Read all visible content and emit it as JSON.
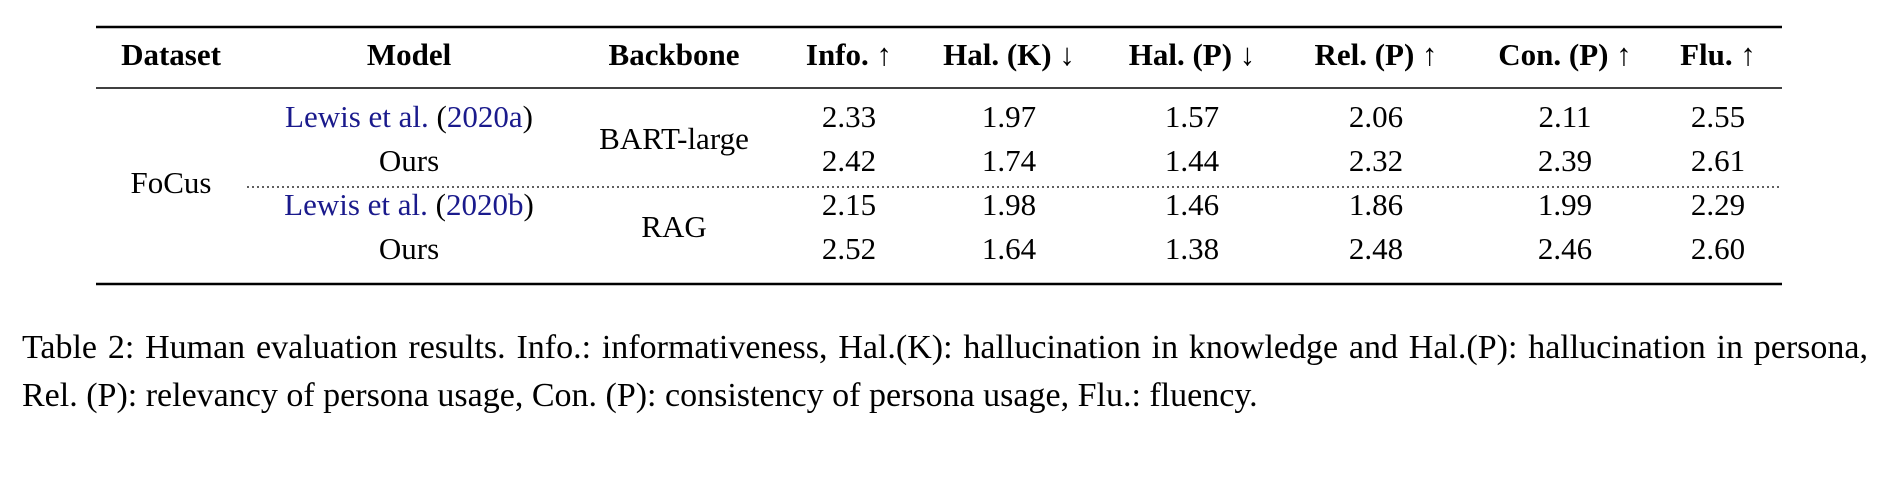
{
  "table": {
    "header": [
      "Dataset",
      "Model",
      "Backbone",
      "Info. ↑",
      "Hal. (K) ↓",
      "Hal. (P) ↓",
      "Rel. (P) ↑",
      "Con. (P) ↑",
      "Flu. ↑"
    ],
    "dataset": "FoCus",
    "groups": [
      {
        "backbone": "BART-large",
        "rows": [
          {
            "model": [
              "Lewis et al.",
              " (",
              "2020a",
              ")"
            ],
            "values": [
              "2.33",
              "1.97",
              "1.57",
              "2.06",
              "2.11",
              "2.55"
            ]
          },
          {
            "model": [
              "Ours"
            ],
            "values": [
              "2.42",
              "1.74",
              "1.44",
              "2.32",
              "2.39",
              "2.61"
            ]
          }
        ]
      },
      {
        "backbone": "RAG",
        "rows": [
          {
            "model": [
              "Lewis et al.",
              " (",
              "2020b",
              ")"
            ],
            "values": [
              "2.15",
              "1.98",
              "1.46",
              "1.86",
              "1.99",
              "2.29"
            ]
          },
          {
            "model": [
              "Ours"
            ],
            "values": [
              "2.52",
              "1.64",
              "1.38",
              "2.48",
              "2.46",
              "2.60"
            ]
          }
        ]
      }
    ]
  },
  "caption": "Table 2: Human evaluation results. Info.: informativeness, Hal.(K): hallucination in knowledge and Hal.(P): hallucination in persona, Rel. (P): relevancy of persona usage, Con. (P): consistency of persona usage, Flu.: fluency."
}
